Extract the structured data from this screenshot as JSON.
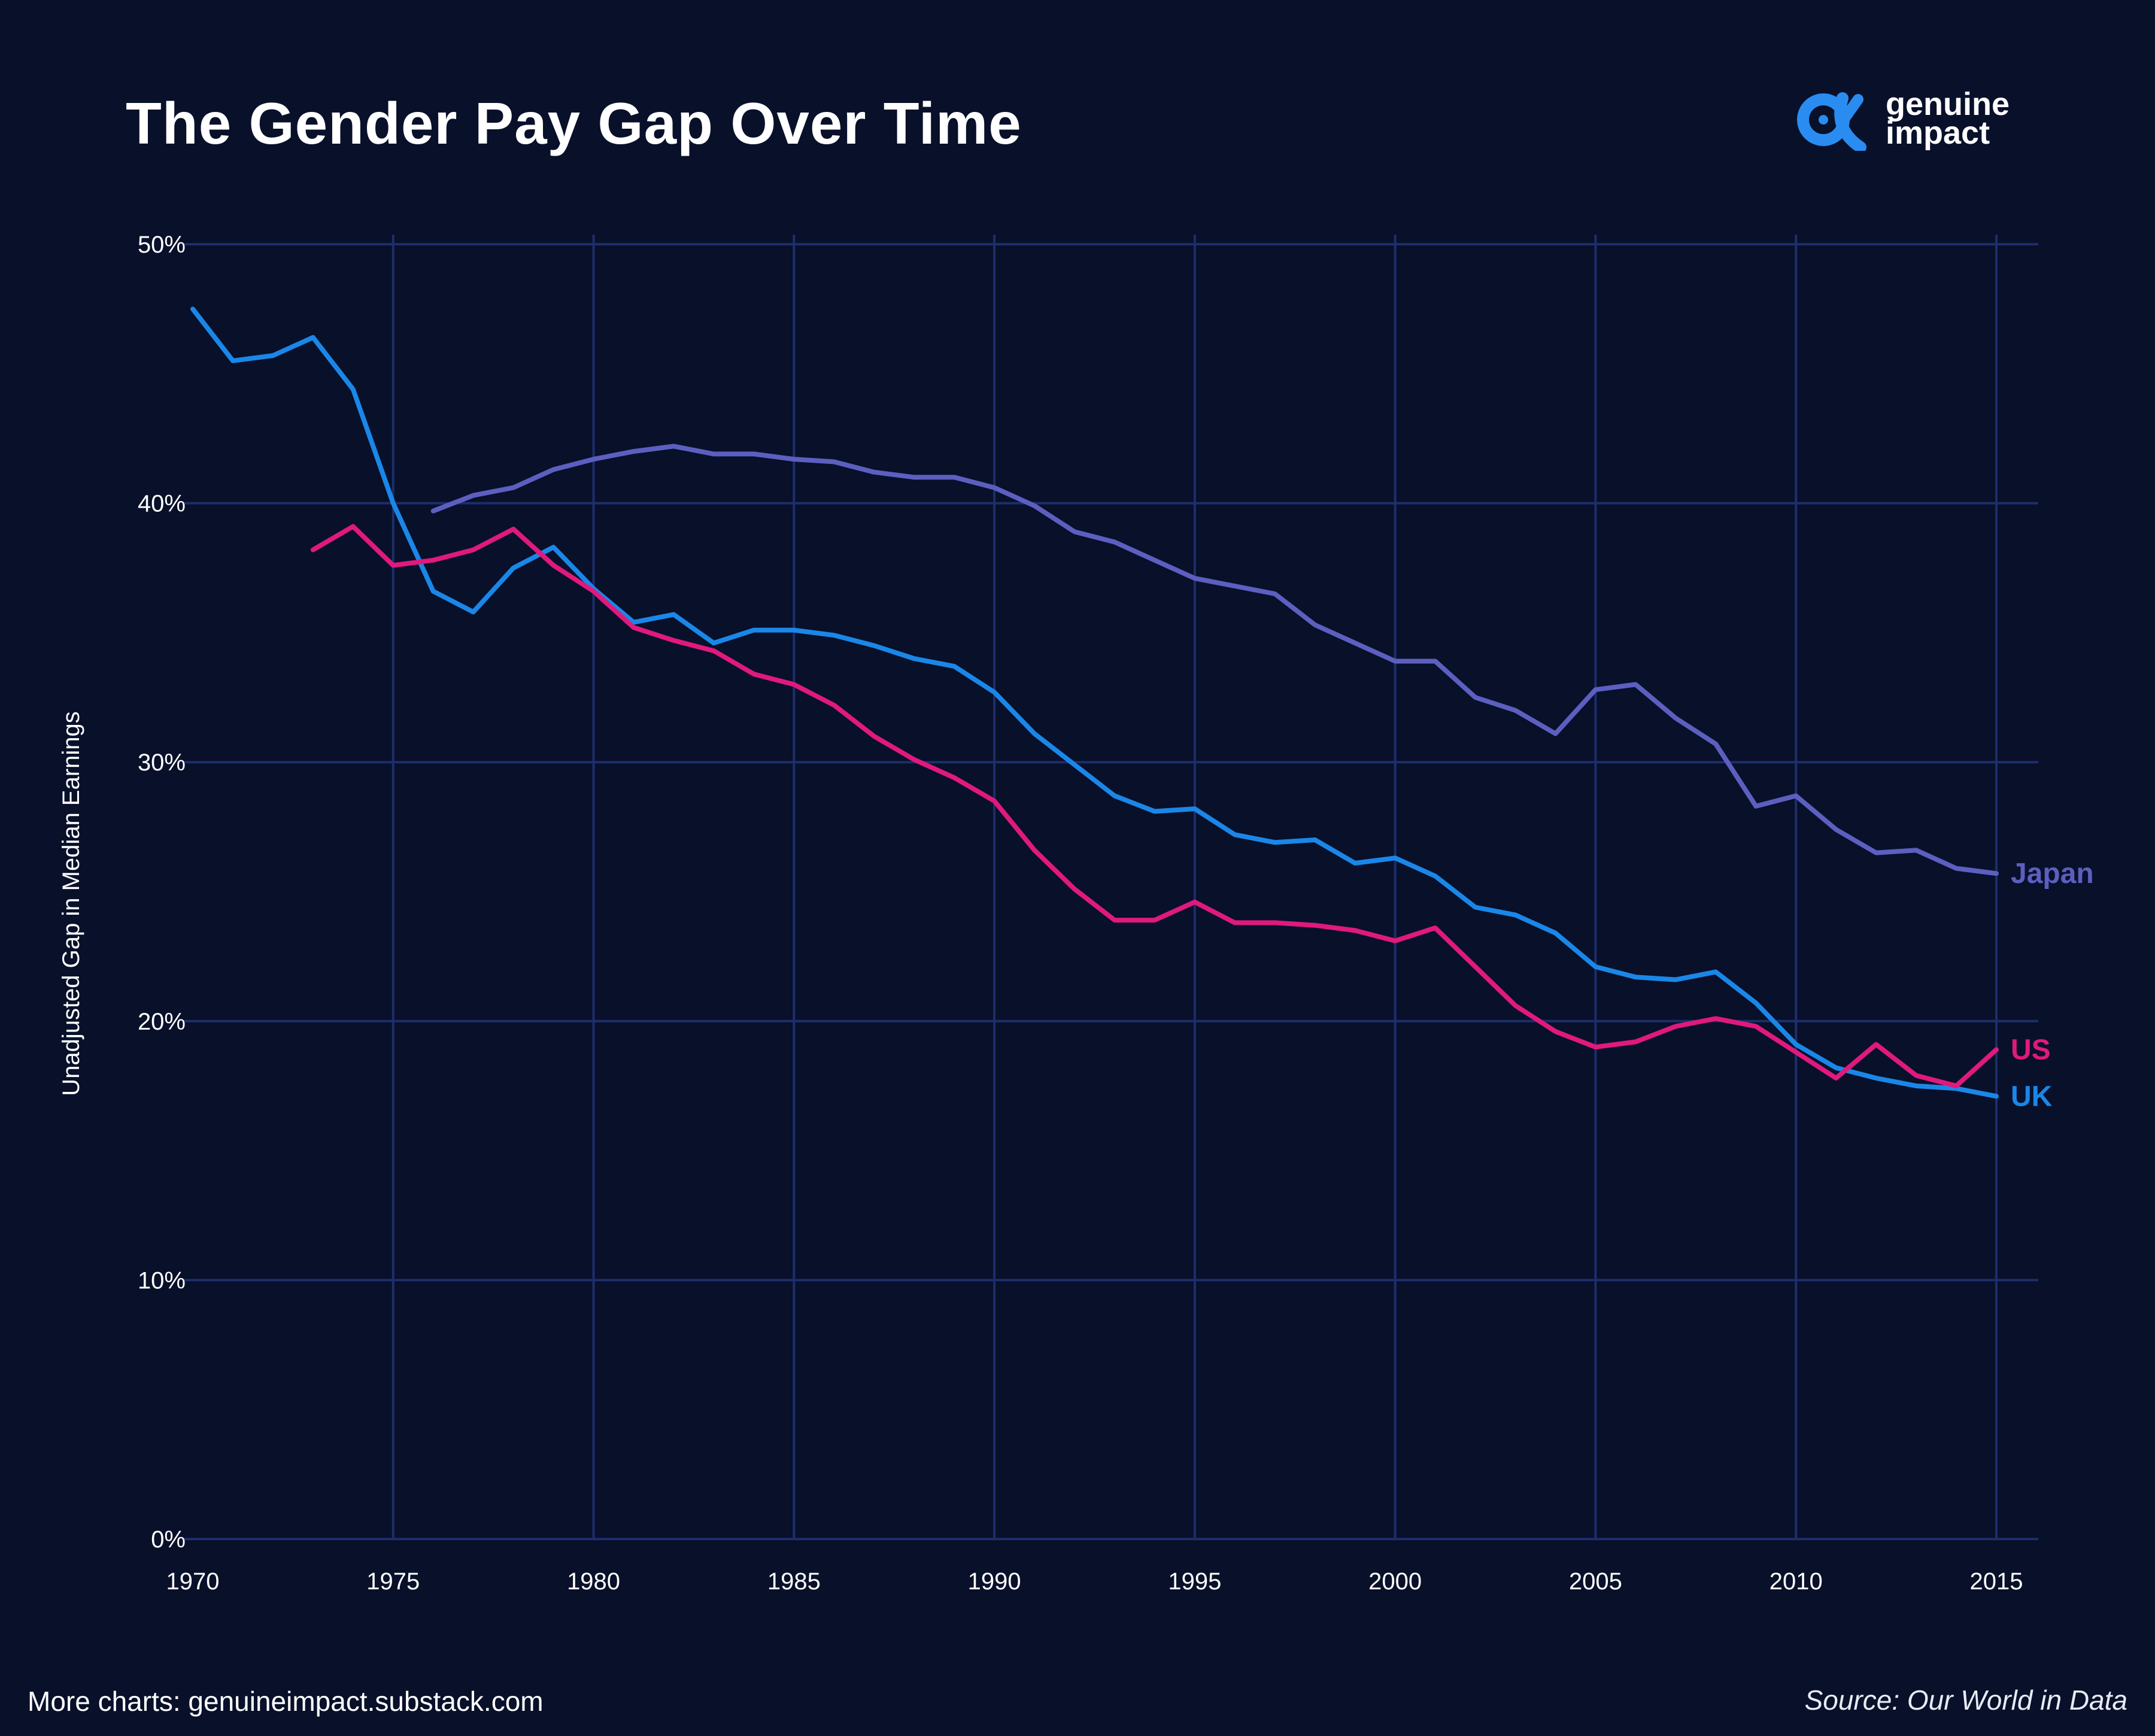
{
  "header": {
    "title": "The Gender Pay Gap Over Time",
    "brand_line1": "genuine",
    "brand_line2": "impact",
    "brand_color": "#2a8cf0"
  },
  "footer": {
    "more_charts": "More charts: genuineimpact.substack.com",
    "source": "Source: Our World in Data"
  },
  "chart_data": {
    "type": "line",
    "title": "The Gender Pay Gap Over Time",
    "ylabel": "Unadjusted Gap in Median Earnings",
    "xlabel": "",
    "xlim": [
      1970,
      2015
    ],
    "ylim": [
      0,
      50
    ],
    "x_ticks": [
      1970,
      1975,
      1980,
      1985,
      1990,
      1995,
      2000,
      2005,
      2010,
      2015
    ],
    "y_ticks": [
      0,
      10,
      20,
      30,
      40,
      50
    ],
    "y_tick_labels": [
      "0%",
      "10%",
      "20%",
      "30%",
      "40%",
      "50%"
    ],
    "grid": true,
    "legend": "direct labels at line ends",
    "background": "#08102a",
    "grid_color": "#1d2e6b",
    "series": [
      {
        "name": "Japan",
        "color": "#5c5fbf",
        "x": [
          1976,
          1977,
          1978,
          1979,
          1980,
          1981,
          1982,
          1983,
          1984,
          1985,
          1986,
          1987,
          1988,
          1989,
          1990,
          1991,
          1992,
          1993,
          1994,
          1995,
          1996,
          1997,
          1998,
          1999,
          2000,
          2001,
          2002,
          2003,
          2004,
          2005,
          2006,
          2007,
          2008,
          2009,
          2010,
          2011,
          2012,
          2013,
          2014,
          2015
        ],
        "y": [
          39.7,
          40.3,
          40.6,
          41.3,
          41.7,
          42.0,
          42.2,
          41.9,
          41.9,
          41.7,
          41.6,
          41.2,
          41.0,
          41.0,
          40.6,
          39.9,
          38.9,
          38.5,
          37.8,
          37.1,
          36.8,
          36.5,
          35.3,
          34.6,
          33.9,
          33.9,
          32.5,
          32.0,
          31.1,
          32.8,
          33.0,
          31.7,
          30.7,
          28.3,
          28.7,
          27.4,
          26.5,
          26.6,
          25.9,
          25.7
        ]
      },
      {
        "name": "US",
        "color": "#e0197d",
        "x": [
          1973,
          1974,
          1975,
          1976,
          1977,
          1978,
          1979,
          1980,
          1981,
          1982,
          1983,
          1984,
          1985,
          1986,
          1987,
          1988,
          1989,
          1990,
          1991,
          1992,
          1993,
          1994,
          1995,
          1996,
          1997,
          1998,
          1999,
          2000,
          2001,
          2002,
          2003,
          2004,
          2005,
          2006,
          2007,
          2008,
          2009,
          2010,
          2011,
          2012,
          2013,
          2014,
          2015
        ],
        "y": [
          38.2,
          39.1,
          37.6,
          37.8,
          38.2,
          39.0,
          37.6,
          36.6,
          35.2,
          34.7,
          34.3,
          33.4,
          33.0,
          32.2,
          31.0,
          30.1,
          29.4,
          28.5,
          26.6,
          25.1,
          23.9,
          23.9,
          24.6,
          23.8,
          23.8,
          23.7,
          23.5,
          23.1,
          23.6,
          22.1,
          20.6,
          19.6,
          19.0,
          19.2,
          19.8,
          20.1,
          19.8,
          18.8,
          17.8,
          19.1,
          17.9,
          17.5,
          18.9
        ]
      },
      {
        "name": "UK",
        "color": "#1a87e8",
        "x": [
          1970,
          1971,
          1972,
          1973,
          1974,
          1975,
          1976,
          1977,
          1978,
          1979,
          1980,
          1981,
          1982,
          1983,
          1984,
          1985,
          1986,
          1987,
          1988,
          1989,
          1990,
          1991,
          1992,
          1993,
          1994,
          1995,
          1996,
          1997,
          1998,
          1999,
          2000,
          2001,
          2002,
          2003,
          2004,
          2005,
          2006,
          2007,
          2008,
          2009,
          2010,
          2011,
          2012,
          2013,
          2014,
          2015
        ],
        "y": [
          47.5,
          45.5,
          45.7,
          46.4,
          44.4,
          40.0,
          36.6,
          35.8,
          37.5,
          38.3,
          36.7,
          35.4,
          35.7,
          34.6,
          35.1,
          35.1,
          34.9,
          34.5,
          34.0,
          33.7,
          32.7,
          31.1,
          29.9,
          28.7,
          28.1,
          28.2,
          27.2,
          26.9,
          27.0,
          26.1,
          26.3,
          25.6,
          24.4,
          24.1,
          23.4,
          22.1,
          21.7,
          21.6,
          21.9,
          20.7,
          19.1,
          18.2,
          17.8,
          17.5,
          17.4,
          17.1
        ]
      }
    ]
  }
}
